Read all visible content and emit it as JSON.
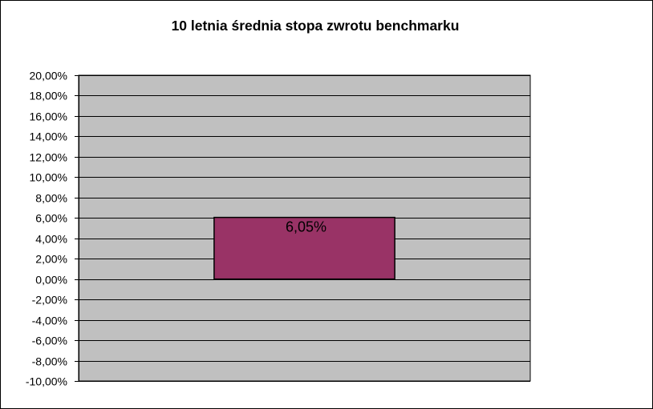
{
  "chart_data": {
    "type": "bar",
    "title": "10 letnia średnia stopa zwrotu benchmarku",
    "categories": [
      ""
    ],
    "values": [
      6.05
    ],
    "data_labels": [
      "6,05%"
    ],
    "xlabel": "",
    "ylabel": "",
    "ylim": [
      -10,
      20
    ],
    "y_tick_step": 2,
    "y_tick_labels": [
      "20,00%",
      "18,00%",
      "16,00%",
      "14,00%",
      "12,00%",
      "10,00%",
      "8,00%",
      "6,00%",
      "4,00%",
      "2,00%",
      "0,00%",
      "-2,00%",
      "-4,00%",
      "-6,00%",
      "-8,00%",
      "-10,00%"
    ],
    "y_tick_values": [
      20,
      18,
      16,
      14,
      12,
      10,
      8,
      6,
      4,
      2,
      0,
      -2,
      -4,
      -6,
      -8,
      -10
    ],
    "grid": true,
    "legend": "none",
    "colors": {
      "plot_background": "#c0c0c0",
      "bar_fill": "#993366",
      "bar_stroke": "#000000",
      "gridline": "#000000"
    }
  }
}
